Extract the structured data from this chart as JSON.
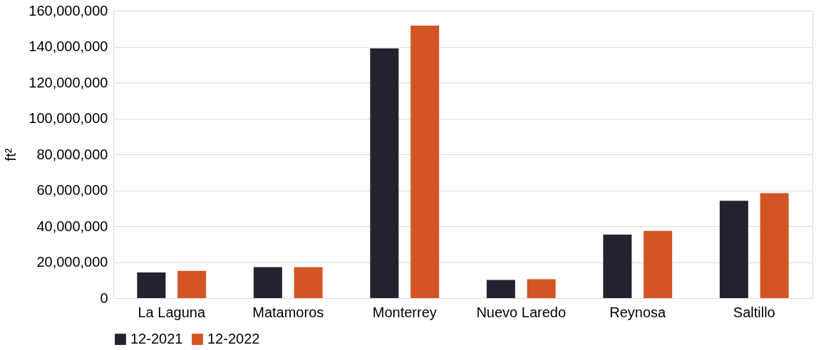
{
  "chart_data": {
    "type": "bar",
    "ylabel": "ft²",
    "categories": [
      "La Laguna",
      "Matamoros",
      "Monterrey",
      "Nuevo Laredo",
      "Reynosa",
      "Saltillo"
    ],
    "series": [
      {
        "name": "12-2021",
        "color": "#22232f",
        "values": [
          14300000,
          17200000,
          139000000,
          10100000,
          35300000,
          54200000
        ]
      },
      {
        "name": "12-2022",
        "color": "#d35424",
        "values": [
          15100000,
          17200000,
          151700000,
          10500000,
          37400000,
          58400000
        ]
      }
    ],
    "ylim": [
      0,
      160000000
    ],
    "yticks": [
      0,
      {
        "value": 20000000,
        "label": "20,000,000"
      },
      {
        "value": 40000000,
        "label": "40,000,000"
      },
      {
        "value": 60000000,
        "label": "60,000,000"
      },
      {
        "value": 80000000,
        "label": "80,000,000"
      },
      {
        "value": 100000000,
        "label": "100,000,000"
      },
      {
        "value": 120000000,
        "label": "120,000,000"
      },
      {
        "value": 140000000,
        "label": "140,000,000"
      },
      {
        "value": 160000000,
        "label": "160,000,000"
      }
    ],
    "grid": "y",
    "legend": "bottom"
  }
}
